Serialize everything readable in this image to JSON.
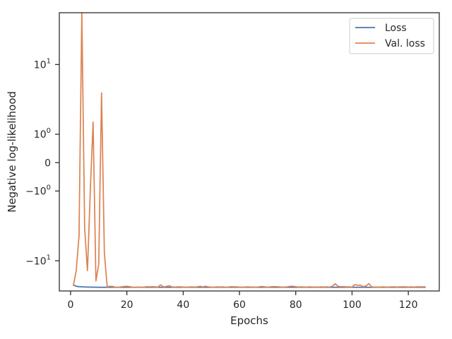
{
  "chart_data": {
    "type": "line",
    "title": "",
    "xlabel": "Epochs",
    "ylabel": "Negative log-likelihood",
    "yscale": "symlog",
    "xlim": [
      -4,
      131
    ],
    "ylim": [
      -22,
      38
    ],
    "grid": false,
    "legend_position": "upper-right",
    "x_ticks": [
      0,
      20,
      40,
      60,
      80,
      100,
      120
    ],
    "y_ticks": [
      {
        "value": 10,
        "base": "10",
        "exp": "1",
        "text": ""
      },
      {
        "value": 1,
        "base": "10",
        "exp": "0",
        "text": ""
      },
      {
        "value": 0,
        "base": "",
        "exp": "",
        "text": "0"
      },
      {
        "value": -1,
        "base": "−10",
        "exp": "0",
        "text": ""
      },
      {
        "value": -10,
        "base": "−10",
        "exp": "1",
        "text": ""
      }
    ],
    "x": [
      1,
      2,
      3,
      4,
      5,
      6,
      7,
      8,
      9,
      10,
      11,
      12,
      13,
      14,
      15,
      16,
      17,
      18,
      19,
      20,
      21,
      22,
      23,
      24,
      25,
      26,
      27,
      28,
      29,
      30,
      31,
      32,
      33,
      34,
      35,
      36,
      37,
      38,
      39,
      40,
      41,
      42,
      43,
      44,
      45,
      46,
      47,
      48,
      49,
      50,
      51,
      52,
      53,
      54,
      55,
      56,
      57,
      58,
      59,
      60,
      61,
      62,
      63,
      64,
      65,
      66,
      67,
      68,
      69,
      70,
      71,
      72,
      73,
      74,
      75,
      76,
      77,
      78,
      79,
      80,
      81,
      82,
      83,
      84,
      85,
      86,
      87,
      88,
      89,
      90,
      91,
      92,
      93,
      94,
      95,
      96,
      97,
      98,
      99,
      100,
      101,
      102,
      103,
      104,
      105,
      106,
      107,
      108,
      109,
      110,
      111,
      112,
      113,
      114,
      115,
      116,
      117,
      118,
      119,
      120,
      121,
      122,
      123,
      124,
      125,
      126
    ],
    "series": [
      {
        "name": "Loss",
        "color": "#4c72b0",
        "values": [
          -18.9,
          -19.5,
          -19.7,
          -19.8,
          -19.85,
          -19.9,
          -19.9,
          -19.95,
          -19.95,
          -20,
          -20,
          -20,
          -20,
          -20,
          -20,
          -20,
          -20,
          -20,
          -20,
          -20,
          -20,
          -20,
          -20,
          -20,
          -20,
          -20,
          -20,
          -20,
          -20,
          -20,
          -20,
          -20,
          -20,
          -20,
          -20,
          -20,
          -20,
          -20,
          -20,
          -20,
          -20,
          -20,
          -20,
          -20,
          -20,
          -20,
          -20,
          -20,
          -20,
          -20,
          -20,
          -20,
          -20,
          -20,
          -20,
          -20,
          -20,
          -20,
          -20,
          -20,
          -20,
          -20,
          -20,
          -20,
          -20,
          -20,
          -20,
          -20,
          -20,
          -20,
          -20,
          -20,
          -20,
          -20,
          -20,
          -20,
          -20,
          -20,
          -20,
          -20,
          -20,
          -20,
          -20,
          -20,
          -20,
          -20,
          -20,
          -20,
          -20,
          -20,
          -20,
          -20,
          -20,
          -20,
          -20,
          -20,
          -20,
          -20,
          -20,
          -20,
          -20,
          -20,
          -20,
          -20,
          -20,
          -20,
          -20,
          -20,
          -20,
          -20,
          -20,
          -20,
          -20,
          -20,
          -20,
          -20,
          -20,
          -20,
          -20,
          -20,
          -20,
          -20,
          -20,
          -20,
          -20,
          -20
        ]
      },
      {
        "name": "Val. loss",
        "color": "#dd8452",
        "values": [
          -19,
          -13,
          -5,
          38,
          -4,
          -13,
          -1,
          1.7,
          -17,
          -11,
          4.5,
          -8,
          -19.8,
          -19.5,
          -19.6,
          -20,
          -20,
          -19.8,
          -19.6,
          -19.5,
          -19.7,
          -20,
          -20,
          -19.9,
          -20,
          -20,
          -19.7,
          -19.8,
          -19.7,
          -19.8,
          -19.9,
          -18.8,
          -19.8,
          -19.6,
          -19.2,
          -19.8,
          -19.9,
          -19.8,
          -19.8,
          -19.9,
          -20,
          -19.9,
          -19.8,
          -19.9,
          -19.8,
          -19.5,
          -19.8,
          -19.5,
          -19.8,
          -20,
          -20,
          -19.8,
          -19.9,
          -19.8,
          -20,
          -19.9,
          -19.7,
          -19.8,
          -19.8,
          -19.9,
          -20,
          -19.9,
          -19.8,
          -19.9,
          -19.9,
          -20,
          -19.8,
          -19.6,
          -19.8,
          -20,
          -19.8,
          -19.7,
          -19.7,
          -19.8,
          -19.9,
          -19.9,
          -19.8,
          -19.5,
          -19.5,
          -19.7,
          -19.9,
          -19.8,
          -19.9,
          -19.9,
          -19.8,
          -19.9,
          -19.9,
          -19.9,
          -19.8,
          -19.9,
          -19.8,
          -19.9,
          -19.5,
          -18.3,
          -19.5,
          -19.7,
          -19.7,
          -19.8,
          -19.8,
          -19.9,
          -18.7,
          -19,
          -19,
          -19.7,
          -19.3,
          -18.2,
          -19.8,
          -19.9,
          -19.9,
          -19.9,
          -19.8,
          -19.9,
          -19.9,
          -19.8,
          -19.8,
          -19.9,
          -19.8,
          -19.8,
          -19.8,
          -19.9,
          -19.8,
          -19.9,
          -19.8,
          -19.8,
          -19.8,
          -19.8
        ]
      }
    ]
  }
}
